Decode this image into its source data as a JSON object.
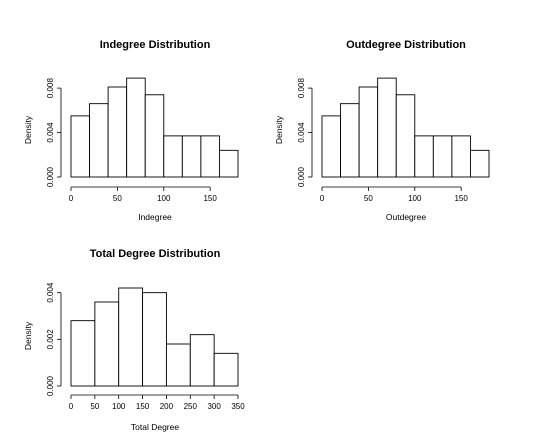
{
  "chart_data": [
    {
      "type": "bar",
      "title": "Indegree Distribution",
      "xlabel": "Indegree",
      "ylabel": "Density",
      "bin_edges": [
        0,
        20,
        40,
        60,
        80,
        100,
        120,
        140,
        160,
        180
      ],
      "values": [
        0.0055,
        0.0066,
        0.0081,
        0.0089,
        0.0074,
        0.0037,
        0.0037,
        0.0037,
        0.0024
      ],
      "xlim": [
        0,
        180
      ],
      "ylim": [
        0,
        0.009
      ],
      "xticks": [
        0,
        50,
        100,
        150
      ],
      "yticks": [
        0.0,
        0.004,
        0.008
      ],
      "ytick_labels": [
        "0.000",
        "0.004",
        "0.008"
      ]
    },
    {
      "type": "bar",
      "title": "Outdegree Distribution",
      "xlabel": "Outdegree",
      "ylabel": "Density",
      "bin_edges": [
        0,
        20,
        40,
        60,
        80,
        100,
        120,
        140,
        160,
        180
      ],
      "values": [
        0.0055,
        0.0066,
        0.0081,
        0.0089,
        0.0074,
        0.0037,
        0.0037,
        0.0037,
        0.0024
      ],
      "xlim": [
        0,
        180
      ],
      "ylim": [
        0,
        0.009
      ],
      "xticks": [
        0,
        50,
        100,
        150
      ],
      "yticks": [
        0.0,
        0.004,
        0.008
      ],
      "ytick_labels": [
        "0.000",
        "0.004",
        "0.008"
      ]
    },
    {
      "type": "bar",
      "title": "Total Degree Distribution",
      "xlabel": "Total Degree",
      "ylabel": "Density",
      "bin_edges": [
        0,
        50,
        100,
        150,
        200,
        250,
        300,
        350
      ],
      "values": [
        0.0028,
        0.0036,
        0.0042,
        0.004,
        0.0018,
        0.0022,
        0.0014
      ],
      "xlim": [
        0,
        350
      ],
      "ylim": [
        0,
        0.0042
      ],
      "xticks": [
        0,
        50,
        100,
        150,
        200,
        250,
        300,
        350
      ],
      "yticks": [
        0.0,
        0.002,
        0.004
      ],
      "ytick_labels": [
        "0.000",
        "0.002",
        "0.004"
      ]
    }
  ]
}
